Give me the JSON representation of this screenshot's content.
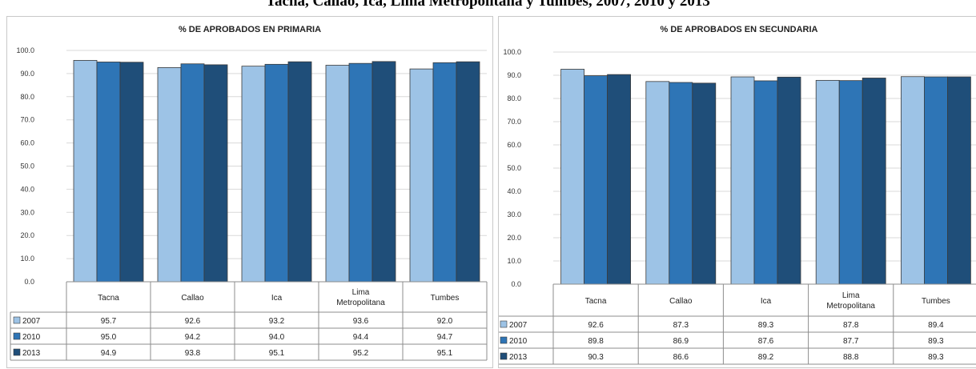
{
  "heading": "Tacna, Callao, Ica, Lima Metropolitana y Tumbes, 2007, 2010 y 2013",
  "colors": {
    "2007": "#9dc3e6",
    "2010": "#2e75b6",
    "2013": "#1f4e79"
  },
  "chart_data": [
    {
      "type": "bar",
      "title": "% DE APROBADOS EN PRIMARIA",
      "categories": [
        "Tacna",
        "Callao",
        "Ica",
        "Lima Metropolitana",
        "Tumbes"
      ],
      "series": [
        {
          "name": "2007",
          "values": [
            95.7,
            92.6,
            93.2,
            93.6,
            92.0
          ]
        },
        {
          "name": "2010",
          "values": [
            95.0,
            94.2,
            94.0,
            94.4,
            94.7
          ]
        },
        {
          "name": "2013",
          "values": [
            94.9,
            93.8,
            95.1,
            95.2,
            95.1
          ]
        }
      ],
      "ylim": [
        0,
        100
      ],
      "yticks": [
        "0.0",
        "10.0",
        "20.0",
        "30.0",
        "40.0",
        "50.0",
        "60.0",
        "70.0",
        "80.0",
        "90.0",
        "100.0"
      ],
      "grid": true,
      "legend": "data-table"
    },
    {
      "type": "bar",
      "title": "% DE APROBADOS EN SECUNDARIA",
      "categories": [
        "Tacna",
        "Callao",
        "Ica",
        "Lima Metropolitana",
        "Tumbes"
      ],
      "series": [
        {
          "name": "2007",
          "values": [
            92.6,
            87.3,
            89.3,
            87.8,
            89.4
          ]
        },
        {
          "name": "2010",
          "values": [
            89.8,
            86.9,
            87.6,
            87.7,
            89.3
          ]
        },
        {
          "name": "2013",
          "values": [
            90.3,
            86.6,
            89.2,
            88.8,
            89.3
          ]
        }
      ],
      "ylim": [
        0,
        100
      ],
      "yticks": [
        "0.0",
        "10.0",
        "20.0",
        "30.0",
        "40.0",
        "50.0",
        "60.0",
        "70.0",
        "80.0",
        "90.0",
        "100.0"
      ],
      "grid": true,
      "legend": "data-table"
    }
  ]
}
